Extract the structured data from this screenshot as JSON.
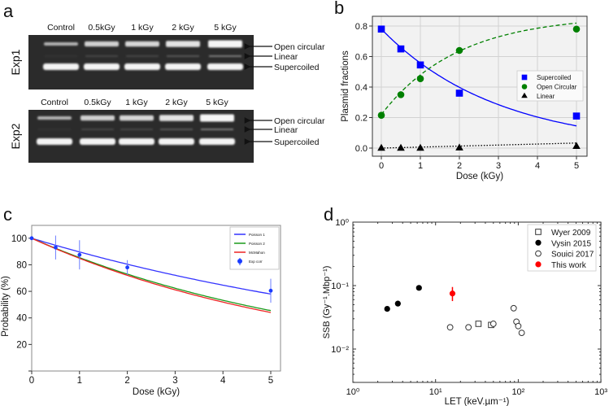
{
  "panel_labels": {
    "a": "a",
    "b": "b",
    "c": "c",
    "d": "d"
  },
  "gel": {
    "lanes": [
      "Control",
      "0.5kGy",
      "1 kGy",
      "2 kGy",
      "5 kGy"
    ],
    "experiments": [
      "Exp1",
      "Exp2"
    ],
    "band_labels": [
      "Open circular",
      "Linear",
      "Supercoiled"
    ],
    "open_circular_intensity": [
      0.3,
      0.6,
      0.65,
      0.8,
      1.0
    ],
    "linear_intensity": [
      0.05,
      0.15,
      0.15,
      0.25,
      0.45
    ]
  },
  "chart_data": [
    {
      "id": "b",
      "type": "scatter",
      "xlabel": "Dose (kGy)",
      "ylabel": "Plasmid fractions",
      "xlim": [
        -0.28,
        5.28
      ],
      "ylim": [
        -0.05,
        0.86
      ],
      "xticks": [
        0,
        1,
        2,
        3,
        4,
        5
      ],
      "xtick_labels": [
        "0",
        "1",
        "2",
        "3",
        "4",
        "5"
      ],
      "yticks": [
        0.0,
        0.2,
        0.4,
        0.6,
        0.8
      ],
      "ytick_labels": [
        "0.0",
        "0.2",
        "0.4",
        "0.6",
        "0.8"
      ],
      "grid": true,
      "legend_position": "center-right",
      "series": [
        {
          "name": "Supercoiled",
          "color": "#0000ff",
          "marker": "square",
          "fit": "solid",
          "x": [
            0,
            0.5,
            1,
            2,
            5
          ],
          "y": [
            0.78,
            0.65,
            0.545,
            0.36,
            0.21
          ],
          "fit_model": {
            "kind": "decay",
            "a": 0.78,
            "k": 0.336
          }
        },
        {
          "name": "Open Circular",
          "color": "#008000",
          "marker": "circle",
          "fit": "dashed",
          "x": [
            0,
            0.5,
            1,
            2,
            5
          ],
          "y": [
            0.215,
            0.35,
            0.455,
            0.64,
            0.78
          ],
          "fit_model": {
            "kind": "rise",
            "a": 0.87,
            "b": 0.22,
            "k": 0.51
          }
        },
        {
          "name": "Linear",
          "color": "#000000",
          "marker": "triangle",
          "fit": "dotted",
          "x": [
            0,
            0.5,
            1,
            2,
            5
          ],
          "y": [
            0.0,
            0.0,
            0.0,
            0.002,
            0.012
          ],
          "fit_model": {
            "kind": "linear",
            "a": 0.0,
            "slope": 0.0066
          }
        }
      ]
    },
    {
      "id": "c",
      "type": "line",
      "xlabel": "Dose (kGy)",
      "ylabel": "Probability (%)",
      "xlim": [
        0,
        5.2
      ],
      "ylim": [
        0,
        110
      ],
      "xticks": [
        0,
        1,
        2,
        3,
        4,
        5
      ],
      "xtick_labels": [
        "0",
        "1",
        "2",
        "3",
        "4",
        "5"
      ],
      "yticks": [
        20,
        40,
        60,
        80,
        100
      ],
      "ytick_labels": [
        "20",
        "40",
        "60",
        "80",
        "100"
      ],
      "grid": false,
      "legend_position": "top-right",
      "series": [
        {
          "name": "Poisson 1",
          "color": "#3333ff",
          "k": 0.109
        },
        {
          "name": "Poisson 2",
          "color": "#1a9a1a",
          "k": 0.1575
        },
        {
          "name": "McMahon",
          "color": "#ee2222",
          "k": 0.164
        }
      ],
      "points": {
        "name": "Exp corr",
        "color": "#1a3cff",
        "x": [
          0,
          0.5,
          1,
          2,
          5
        ],
        "y": [
          100,
          93,
          87.5,
          78,
          60.5
        ],
        "err": [
          0,
          9,
          11,
          5.5,
          9
        ]
      }
    },
    {
      "id": "d",
      "type": "scatter",
      "xlabel": "LET (keV.µm⁻¹)",
      "ylabel": "SSB (Gy⁻¹.Mbp⁻¹)",
      "xscale": "log",
      "yscale": "log",
      "xlim": [
        1,
        1000
      ],
      "ylim": [
        0.003,
        1
      ],
      "xticks": [
        1,
        10,
        100,
        1000
      ],
      "xtick_labels": [
        "10⁰",
        "10¹",
        "10²",
        "10³"
      ],
      "yticks": [
        0.01,
        0.1,
        1
      ],
      "ytick_labels": [
        "10⁻²",
        "10⁻¹",
        "10⁰"
      ],
      "grid": false,
      "legend_position": "top-right",
      "series": [
        {
          "name": "Wyer 2009",
          "marker": "open-square",
          "color": "#333333",
          "x": [
            33,
            47
          ],
          "y": [
            0.025,
            0.024
          ]
        },
        {
          "name": "Vysin 2015",
          "marker": "filled-circle",
          "color": "#000000",
          "x": [
            2.6,
            3.5,
            6.3
          ],
          "y": [
            0.043,
            0.052,
            0.092
          ]
        },
        {
          "name": "Souici 2017",
          "marker": "open-circle",
          "color": "#333333",
          "x": [
            15,
            25,
            50,
            88,
            95,
            100,
            110
          ],
          "y": [
            0.022,
            0.022,
            0.025,
            0.044,
            0.027,
            0.023,
            0.018
          ]
        },
        {
          "name": "This work",
          "marker": "filled-circle",
          "color": "#ff0000",
          "x": [
            16
          ],
          "y": [
            0.075
          ],
          "err_low": [
            0.057
          ],
          "err_high": [
            0.095
          ]
        }
      ]
    }
  ]
}
